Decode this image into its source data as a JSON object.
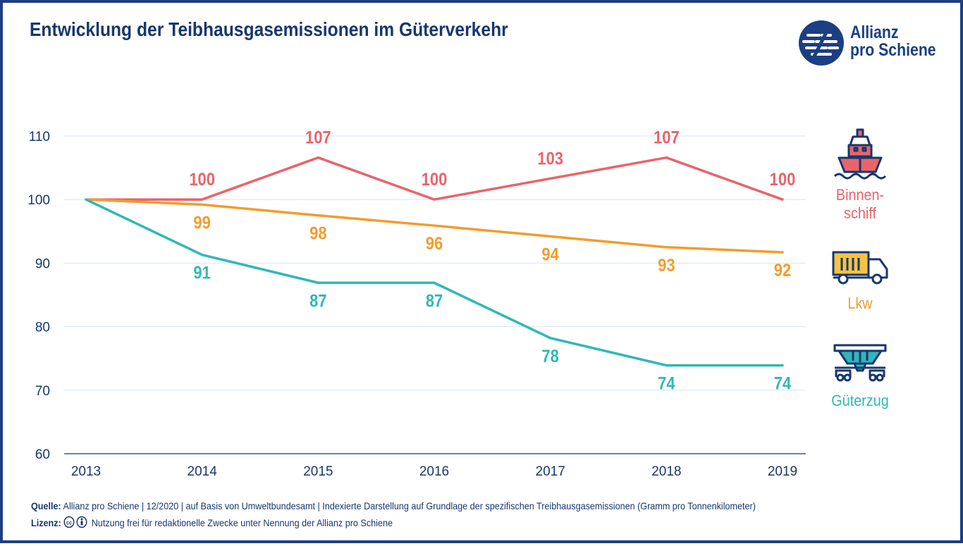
{
  "header": {
    "title": "Entwicklung der Teibhausgasemissionen im Güterverkehr",
    "logo_line1": "Allianz",
    "logo_line2": "pro Schiene"
  },
  "colors": {
    "brand": "#1b3f82",
    "binnenschiff": "#e8646a",
    "lkw": "#f39c2c",
    "gueterzug": "#2fb8b8"
  },
  "chart_data": {
    "type": "line",
    "title": "Entwicklung der Teibhausgasemissionen im Güterverkehr",
    "x": [
      "2013",
      "2014",
      "2015",
      "2016",
      "2017",
      "2018",
      "2019"
    ],
    "ylim": [
      60,
      110
    ],
    "yticks": [
      110,
      100,
      90,
      80,
      70,
      60
    ],
    "grid": true,
    "legend_placement": "right",
    "series": [
      {
        "name": "Binnen-schiff",
        "color": "#e8646a",
        "values": [
          100,
          100,
          106.6,
          100,
          103.3,
          106.6,
          100
        ],
        "labels": [
          "",
          "100",
          "107",
          "100",
          "103",
          "107",
          "100"
        ],
        "label_position": "above"
      },
      {
        "name": "Lkw",
        "color": "#f39c2c",
        "values": [
          100,
          99.2,
          97.5,
          95.9,
          94.2,
          92.5,
          91.7
        ],
        "labels": [
          "",
          "99",
          "98",
          "96",
          "94",
          "93",
          "92"
        ],
        "label_position": "below"
      },
      {
        "name": "Güterzug",
        "color": "#2fb8b8",
        "values": [
          100,
          91.3,
          86.9,
          86.9,
          78.2,
          73.9,
          73.9
        ],
        "labels": [
          "",
          "91",
          "87",
          "87",
          "78",
          "74",
          "74"
        ],
        "label_position": "below"
      }
    ]
  },
  "legend": {
    "binnenschiff_line1": "Binnen-",
    "binnenschiff_line2": "schiff",
    "lkw": "Lkw",
    "gueterzug": "Güterzug",
    "icons": [
      "ship-icon",
      "truck-icon",
      "freight-wagon-icon"
    ]
  },
  "footer": {
    "source_label": "Quelle:",
    "source_text": "Allianz pro Schiene | 12/2020 | auf Basis von Umweltbundesamt | Indexierte Darstellung auf Grundlage der spezifischen Treibhausgasemissionen (Gramm pro Tonnenkilometer)",
    "license_label": "Lizenz:",
    "license_text": "Nutzung frei für redaktionelle Zwecke unter Nennung der Allianz pro Schiene"
  }
}
